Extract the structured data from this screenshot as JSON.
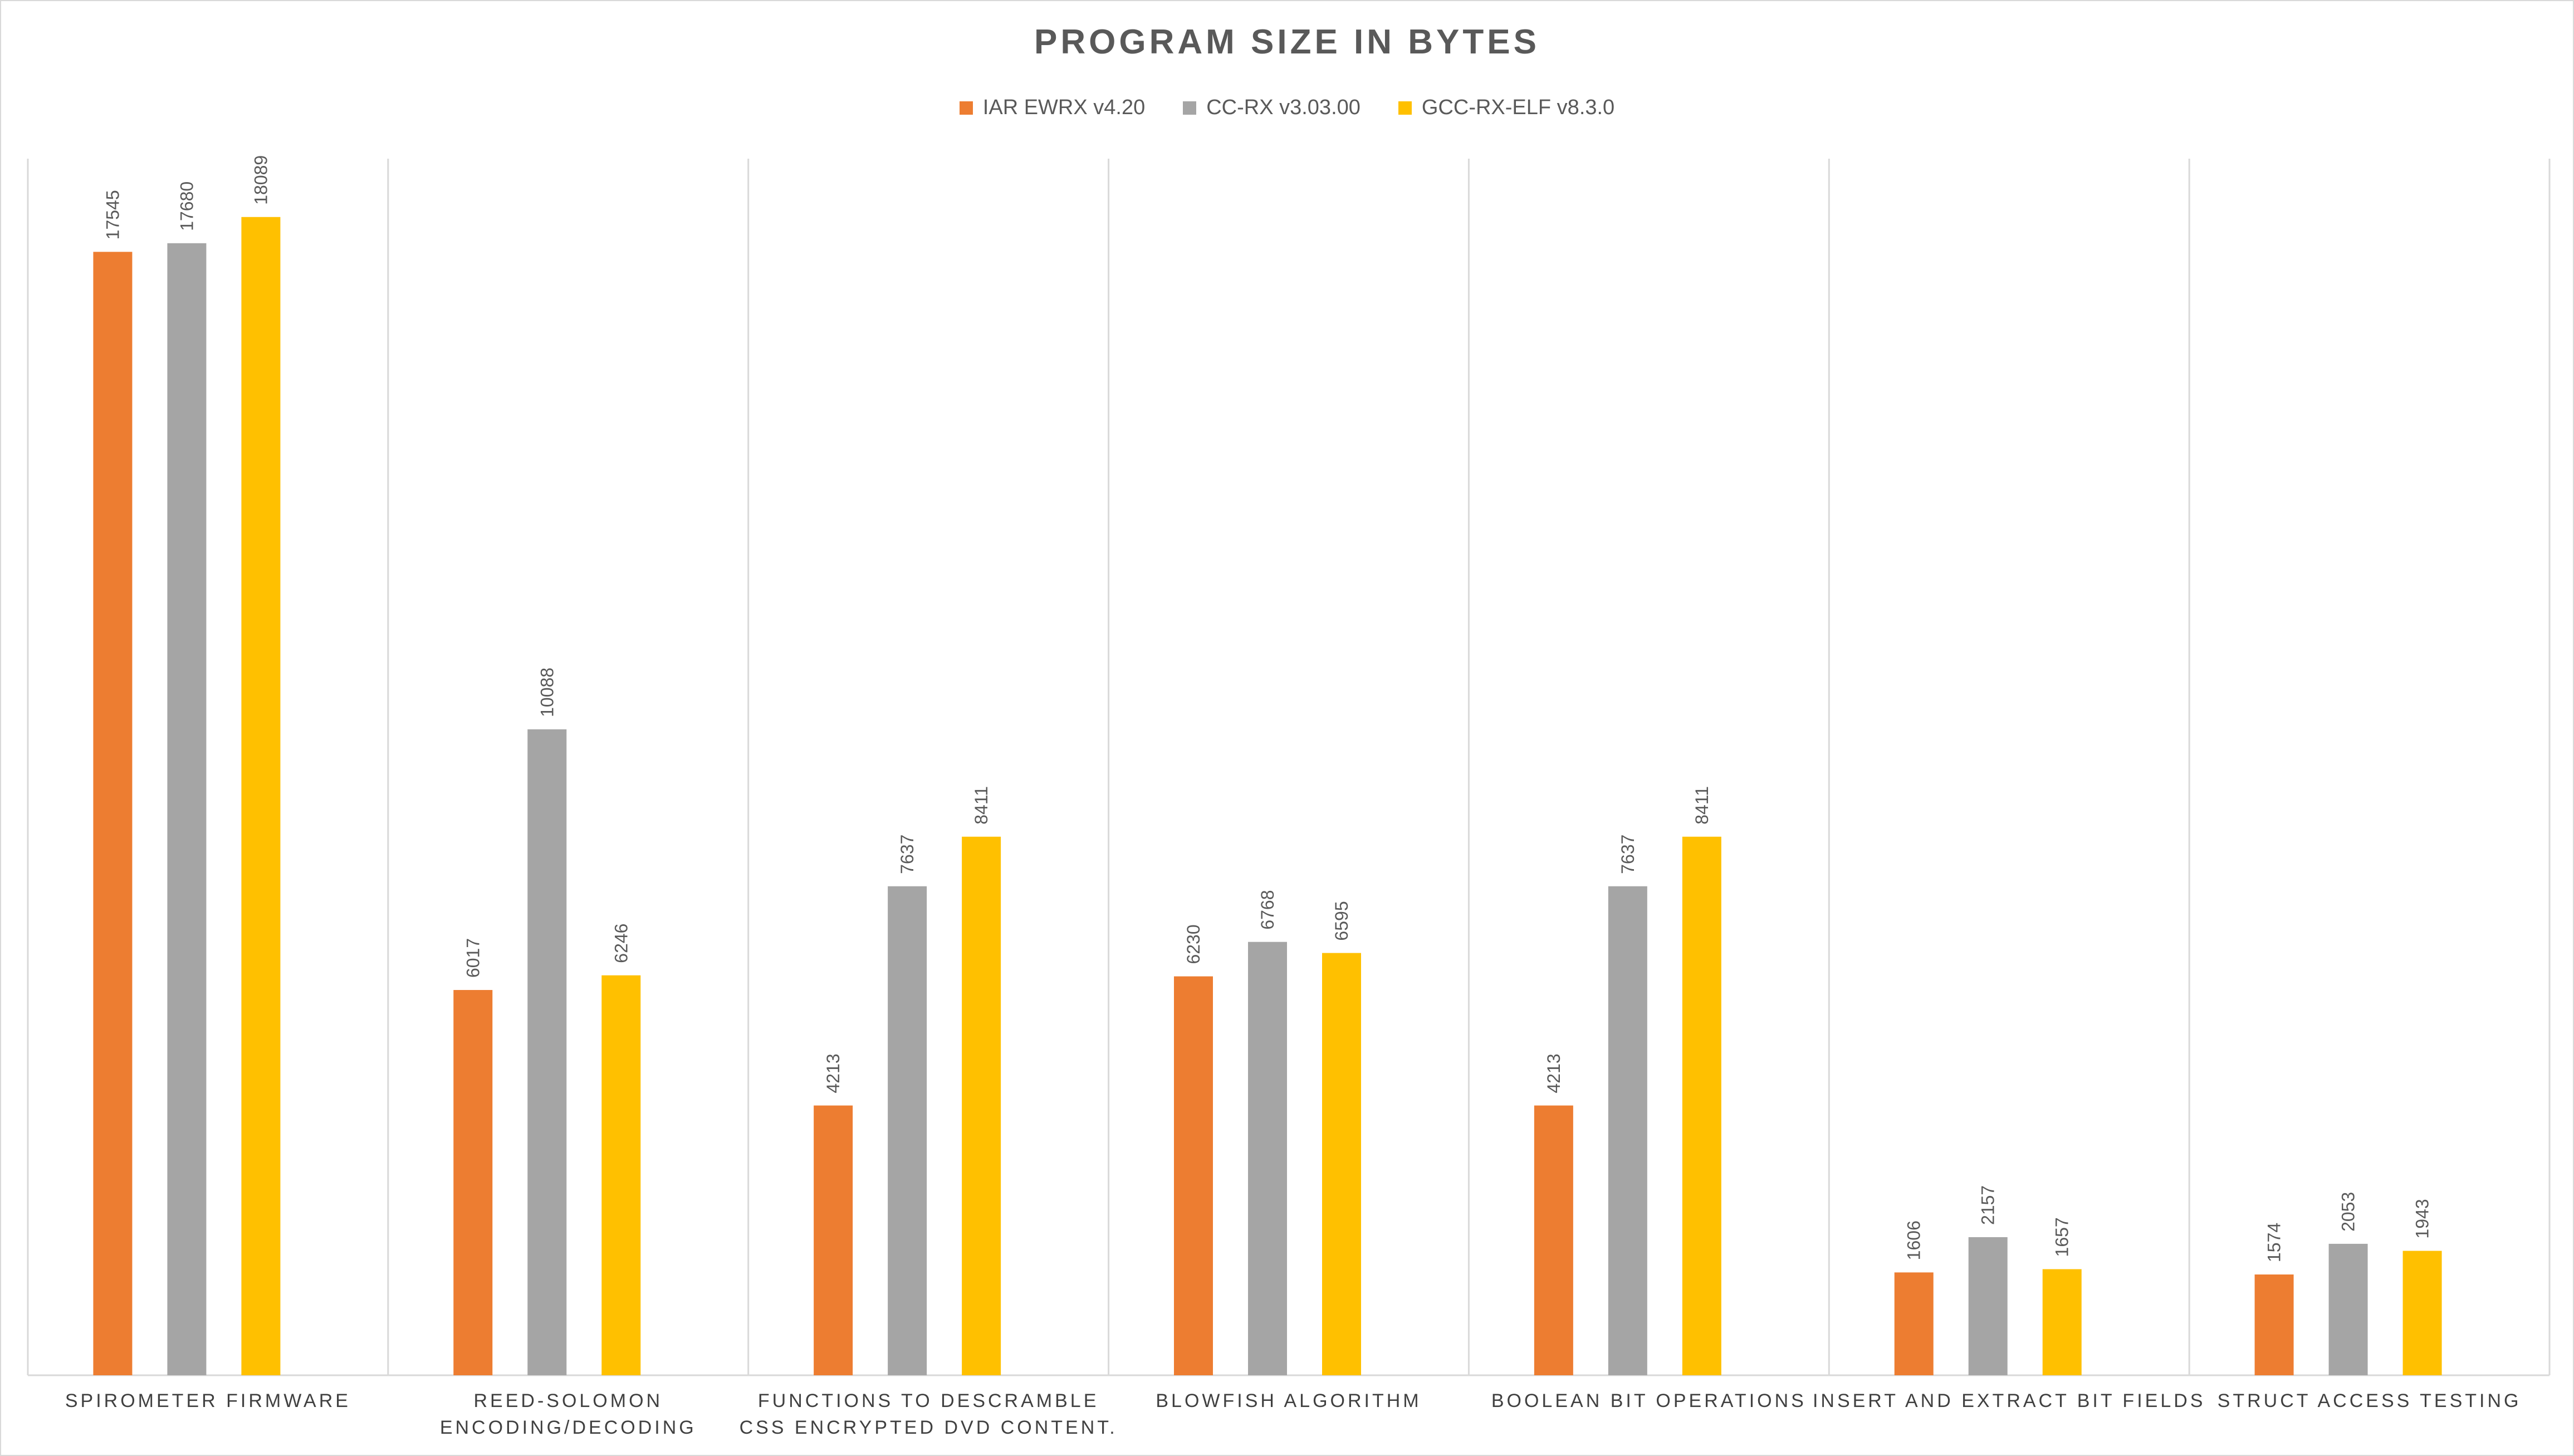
{
  "chart_data": {
    "type": "bar",
    "title": "PROGRAM SIZE IN BYTES",
    "categories": [
      [
        "SPIROMETER FIRMWARE"
      ],
      [
        "REED-SOLOMON",
        "ENCODING/DECODING"
      ],
      [
        "FUNCTIONS TO DESCRAMBLE",
        "CSS ENCRYPTED DVD CONTENT."
      ],
      [
        "BLOWFISH ALGORITHM"
      ],
      [
        "BOOLEAN BIT OPERATIONS"
      ],
      [
        "INSERT AND EXTRACT BIT FIELDS"
      ],
      [
        "STRUCT ACCESS TESTING"
      ]
    ],
    "series": [
      {
        "name": "IAR EWRX v4.20",
        "color": "#ed7d31",
        "values": [
          17545,
          6017,
          4213,
          6230,
          4213,
          1606,
          1574
        ]
      },
      {
        "name": "CC-RX v3.03.00",
        "color": "#a5a5a5",
        "values": [
          17680,
          10088,
          7637,
          6768,
          7637,
          2157,
          2053
        ]
      },
      {
        "name": "GCC-RX-ELF v8.3.0",
        "color": "#ffc000",
        "values": [
          18089,
          6246,
          8411,
          6595,
          8411,
          1657,
          1943
        ]
      }
    ],
    "ylim": [
      0,
      20000
    ],
    "xlabel": "",
    "ylabel": "",
    "legend": "top-center",
    "grid": "vertical category separators",
    "data_labels": "rotated, above bars"
  }
}
